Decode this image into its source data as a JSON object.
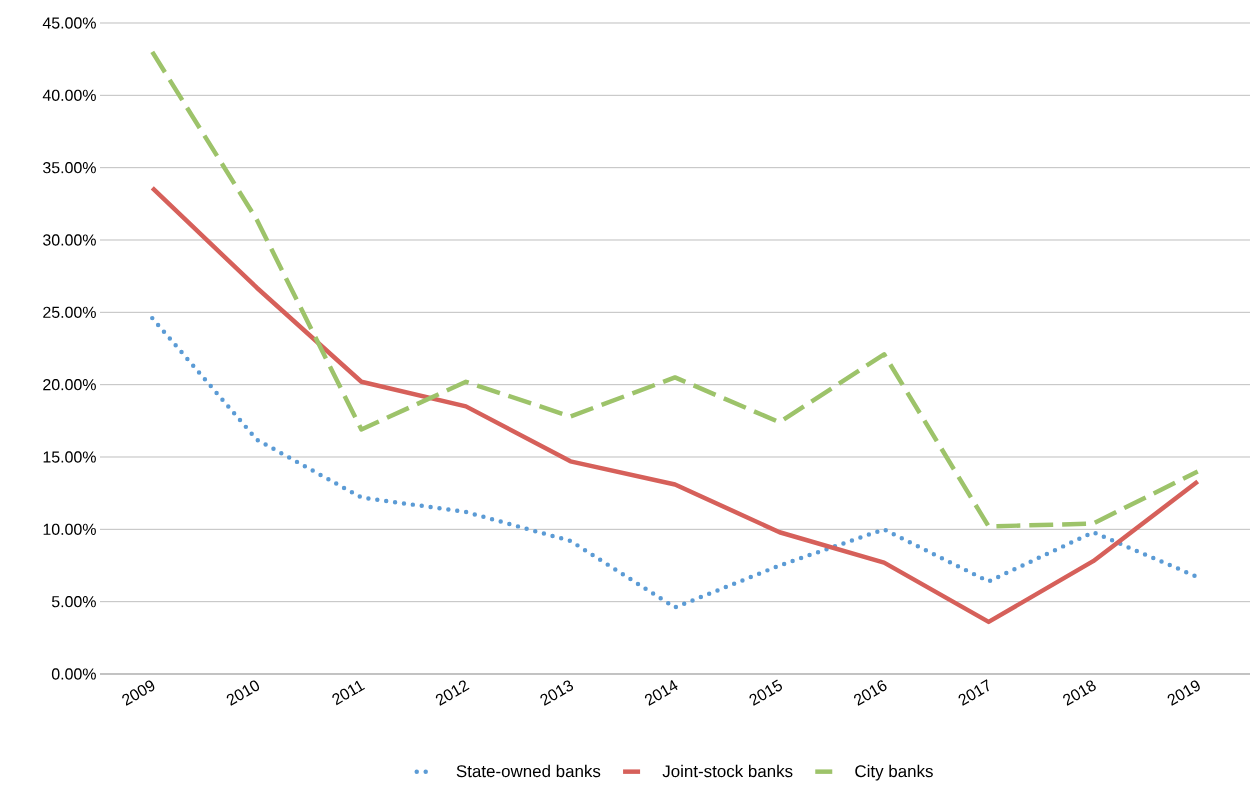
{
  "chart_data": {
    "type": "line",
    "categories": [
      "2009",
      "2010",
      "2011",
      "2012",
      "2013",
      "2014",
      "2015",
      "2016",
      "2017",
      "2018",
      "2019"
    ],
    "series": [
      {
        "name": "State-owned banks",
        "color": "#5b9bd5",
        "line_style": "dotted",
        "values": [
          24.6,
          16.2,
          12.2,
          11.2,
          9.2,
          4.6,
          7.5,
          10.0,
          6.4,
          9.8,
          6.7
        ]
      },
      {
        "name": "Joint-stock banks",
        "color": "#d6605a",
        "line_style": "solid",
        "values": [
          33.6,
          26.7,
          20.2,
          18.5,
          14.7,
          13.1,
          9.8,
          7.7,
          3.6,
          7.8,
          13.3
        ]
      },
      {
        "name": "City banks",
        "color": "#9dc36a",
        "line_style": "dashed",
        "values": [
          43.0,
          31.4,
          16.9,
          20.2,
          17.8,
          20.5,
          17.4,
          22.1,
          10.2,
          10.4,
          14.0
        ]
      }
    ],
    "ylim": [
      0,
      45
    ],
    "yticks": [
      {
        "value": 0,
        "label": "0.00%"
      },
      {
        "value": 5,
        "label": "5.00%"
      },
      {
        "value": 10,
        "label": "10.00%"
      },
      {
        "value": 15,
        "label": "15.00%"
      },
      {
        "value": 20,
        "label": "20.00%"
      },
      {
        "value": 25,
        "label": "25.00%"
      },
      {
        "value": 30,
        "label": "30.00%"
      },
      {
        "value": 35,
        "label": "35.00%"
      },
      {
        "value": 40,
        "label": "40.00%"
      },
      {
        "value": 45,
        "label": "45.00%"
      }
    ],
    "grid": "y",
    "legend": "bottom",
    "marker": "none"
  }
}
